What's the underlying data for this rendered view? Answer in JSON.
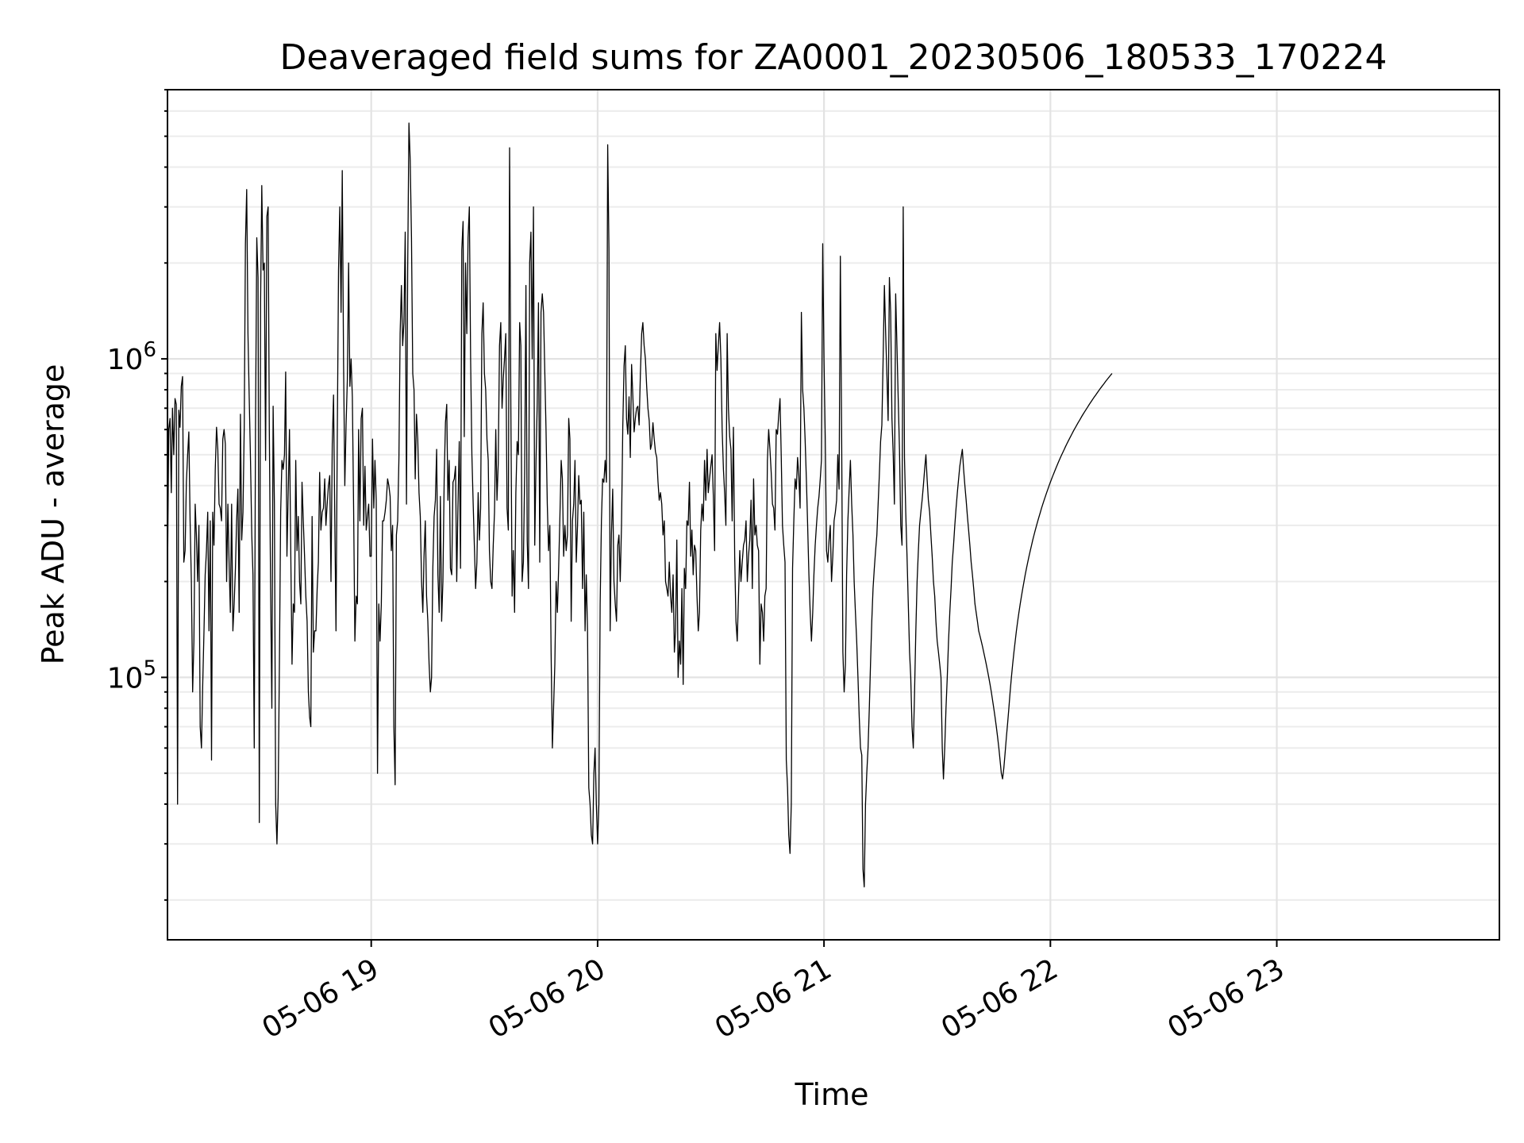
{
  "chart_data": {
    "type": "line",
    "title": "Deaveraged field sums for ZA0001_20230506_180533_170224",
    "xlabel": "Time",
    "ylabel": "Peak ADU - average",
    "xscale": "time",
    "yscale": "log",
    "xlim": [
      "2023-05-06 18:06",
      "2023-05-06 23:59"
    ],
    "ylim": [
      15000,
      7000000
    ],
    "x_ticks": [
      {
        "value": "2023-05-06 19:00",
        "label": "05-06 19"
      },
      {
        "value": "2023-05-06 20:00",
        "label": "05-06 20"
      },
      {
        "value": "2023-05-06 21:00",
        "label": "05-06 21"
      },
      {
        "value": "2023-05-06 22:00",
        "label": "05-06 22"
      },
      {
        "value": "2023-05-06 23:00",
        "label": "05-06 23"
      }
    ],
    "y_ticks": [
      {
        "value": 100000,
        "base": "10",
        "exp": "5"
      },
      {
        "value": 1000000,
        "base": "10",
        "exp": "6"
      }
    ],
    "grid": true,
    "line_color": "#000000",
    "series": [
      {
        "sample_interval_seconds": 20,
        "start": "2023-05-06 18:06",
        "y": [
          200000,
          600000,
          650000,
          380000,
          700000,
          500000,
          750000,
          720000,
          40000,
          690000,
          610000,
          820000,
          880000,
          230000,
          250000,
          410000,
          500000,
          590000,
          310000,
          200000,
          90000,
          130000,
          350000,
          280000,
          200000,
          300000,
          70000,
          60000,
          95000,
          140000,
          210000,
          250000,
          330000,
          140000,
          310000,
          55000,
          330000,
          260000,
          450000,
          610000,
          520000,
          350000,
          340000,
          310000,
          560000,
          600000,
          540000,
          200000,
          350000,
          230000,
          160000,
          350000,
          140000,
          170000,
          220000,
          310000,
          390000,
          160000,
          670000,
          270000,
          330000,
          610000,
          2300000,
          3400000,
          1200000,
          750000,
          480000,
          280000,
          210000,
          60000,
          620000,
          2400000,
          1800000,
          35000,
          1500000,
          3500000,
          1900000,
          2000000,
          480000,
          2800000,
          3000000,
          600000,
          190000,
          80000,
          710000,
          350000,
          40000,
          30000,
          42000,
          110000,
          330000,
          480000,
          450000,
          500000,
          910000,
          240000,
          380000,
          600000,
          250000,
          110000,
          170000,
          160000,
          480000,
          250000,
          320000,
          200000,
          170000,
          410000,
          310000,
          240000,
          180000,
          150000,
          90000,
          75000,
          70000,
          320000,
          120000,
          140000,
          140000,
          190000,
          230000,
          440000,
          290000,
          330000,
          340000,
          420000,
          300000,
          350000,
          400000,
          430000,
          200000,
          540000,
          770000,
          330000,
          140000,
          560000,
          1900000,
          3000000,
          1400000,
          3900000,
          1000000,
          400000,
          620000,
          860000,
          2000000,
          820000,
          1000000,
          760000,
          340000,
          130000,
          180000,
          170000,
          600000,
          310000,
          650000,
          700000,
          300000,
          460000,
          290000,
          320000,
          350000,
          240000,
          240000,
          560000,
          340000,
          480000,
          360000,
          50000,
          170000,
          130000,
          170000,
          310000,
          310000,
          330000,
          360000,
          420000,
          400000,
          370000,
          250000,
          300000,
          70000,
          46000,
          280000,
          310000,
          490000,
          1200000,
          1700000,
          1100000,
          1300000,
          2500000,
          350000,
          1900000,
          5500000,
          4200000,
          2400000,
          900000,
          800000,
          420000,
          670000,
          560000,
          380000,
          320000,
          200000,
          160000,
          240000,
          310000,
          180000,
          150000,
          110000,
          90000,
          100000,
          220000,
          320000,
          360000,
          520000,
          210000,
          160000,
          370000,
          150000,
          200000,
          420000,
          630000,
          720000,
          360000,
          480000,
          220000,
          210000,
          410000,
          420000,
          460000,
          200000,
          350000,
          550000,
          220000,
          2200000,
          2700000,
          570000,
          2000000,
          1200000,
          2400000,
          3000000,
          1000000,
          500000,
          360000,
          260000,
          190000,
          230000,
          380000,
          270000,
          340000,
          1200000,
          1500000,
          900000,
          800000,
          560000,
          480000,
          250000,
          200000,
          190000,
          260000,
          330000,
          600000,
          360000,
          470000,
          1100000,
          1300000,
          700000,
          870000,
          1000000,
          1200000,
          340000,
          290000,
          4600000,
          700000,
          180000,
          250000,
          160000,
          380000,
          550000,
          500000,
          1300000,
          1100000,
          200000,
          230000,
          440000,
          1700000,
          270000,
          190000,
          2000000,
          2500000,
          1000000,
          3000000,
          260000,
          480000,
          720000,
          1500000,
          230000,
          1400000,
          1600000,
          1400000,
          900000,
          600000,
          350000,
          250000,
          300000,
          120000,
          60000,
          80000,
          110000,
          200000,
          160000,
          220000,
          320000,
          480000,
          420000,
          240000,
          300000,
          250000,
          280000,
          650000,
          560000,
          150000,
          310000,
          350000,
          480000,
          230000,
          300000,
          430000,
          350000,
          360000,
          190000,
          330000,
          140000,
          210000,
          140000,
          45000,
          40000,
          32000,
          30000,
          50000,
          60000,
          40000,
          30000,
          40000,
          170000,
          310000,
          420000,
          410000,
          480000,
          410000,
          4700000,
          2200000,
          140000,
          280000,
          390000,
          200000,
          170000,
          150000,
          260000,
          280000,
          200000,
          300000,
          610000,
          950000,
          1100000,
          650000,
          580000,
          760000,
          490000,
          960000,
          760000,
          590000,
          650000,
          700000,
          710000,
          620000,
          900000,
          1200000,
          1300000,
          1100000,
          1000000,
          820000,
          700000,
          640000,
          520000,
          540000,
          630000,
          560000,
          510000,
          490000,
          410000,
          360000,
          380000,
          350000,
          280000,
          310000,
          200000,
          190000,
          180000,
          230000,
          180000,
          160000,
          210000,
          120000,
          140000,
          270000,
          100000,
          130000,
          110000,
          190000,
          95000,
          220000,
          190000,
          310000,
          300000,
          410000,
          240000,
          290000,
          210000,
          260000,
          250000,
          180000,
          140000,
          160000,
          290000,
          350000,
          310000,
          480000,
          360000,
          520000,
          380000,
          420000,
          460000,
          500000,
          370000,
          250000,
          1200000,
          920000,
          1100000,
          1300000,
          1000000,
          600000,
          450000,
          380000,
          300000,
          1200000,
          700000,
          570000,
          520000,
          310000,
          610000,
          240000,
          150000,
          130000,
          180000,
          250000,
          200000,
          230000,
          260000,
          270000,
          310000,
          200000,
          240000,
          270000,
          360000,
          190000,
          420000,
          280000,
          300000,
          260000,
          250000,
          110000,
          170000,
          160000,
          130000,
          180000,
          190000,
          480000,
          600000,
          520000,
          440000,
          350000,
          340000,
          290000,
          600000,
          580000,
          670000,
          750000,
          500000,
          300000,
          260000,
          230000,
          55000,
          45000,
          32000,
          28000,
          40000,
          220000,
          310000,
          420000,
          390000,
          490000,
          430000,
          340000,
          1400000,
          800000,
          700000,
          560000,
          420000,
          300000,
          210000,
          160000,
          130000,
          160000,
          210000,
          260000,
          300000,
          340000,
          370000,
          420000,
          480000,
          2300000,
          1000000,
          560000,
          250000,
          230000,
          270000,
          300000,
          200000,
          240000,
          310000,
          330000,
          360000,
          500000,
          390000,
          2100000,
          600000,
          120000,
          90000,
          110000,
          210000,
          310000,
          390000,
          480000,
          350000,
          280000,
          200000,
          160000,
          130000,
          100000,
          75000,
          60000,
          57000,
          25000,
          22000,
          40000,
          50000,
          60000,
          80000,
          110000,
          150000,
          190000,
          220000,
          250000,
          280000,
          350000,
          430000,
          550000,
          620000,
          1000000,
          1700000,
          1200000,
          900000,
          640000,
          1800000,
          1400000,
          650000,
          500000,
          350000,
          1600000,
          1100000,
          750000,
          520000,
          300000,
          260000,
          3000000,
          490000,
          330000,
          240000,
          170000,
          120000,
          100000,
          70000,
          60000,
          90000,
          140000,
          200000,
          250000,
          300000,
          330000,
          360000,
          400000,
          450000,
          500000,
          420000,
          360000,
          330000,
          280000,
          240000,
          200000,
          180000,
          150000,
          130000,
          120000,
          110000,
          100000,
          60000,
          48000,
          60000,
          80000,
          100000,
          130000,
          160000,
          190000,
          230000,
          260000,
          300000,
          340000,
          380000,
          420000,
          460000,
          490000,
          520000,
          450000,
          400000,
          360000,
          320000,
          290000,
          260000,
          230000,
          210000,
          190000,
          170000,
          160000,
          150000,
          140000,
          135000,
          130000,
          125000,
          120000,
          115000,
          110000,
          105000,
          100000,
          95000,
          90000,
          85000,
          80000,
          75000,
          70000,
          65000,
          60000,
          55000,
          50000,
          48000,
          52000,
          58000,
          65000,
          72000,
          80000,
          90000,
          100000,
          110000,
          120000,
          130000,
          140000,
          150000,
          160000,
          170000,
          180000,
          190000,
          200000,
          210000,
          220000,
          230000,
          240000,
          250000,
          260000,
          270000,
          280000,
          290000,
          300000,
          310000,
          320000,
          330000,
          340000,
          350000,
          360000,
          370000,
          380000,
          390000,
          400000,
          410000,
          420000,
          430000,
          440000,
          450000,
          460000,
          470000,
          480000,
          490000,
          500000,
          510000,
          520000,
          530000,
          540000,
          550000,
          560000,
          570000,
          580000,
          590000,
          600000,
          610000,
          620000,
          630000,
          640000,
          650000,
          660000,
          670000,
          680000,
          690000,
          700000,
          710000,
          720000,
          730000,
          740000,
          750000,
          760000,
          770000,
          780000,
          790000,
          800000,
          810000,
          820000,
          830000,
          840000,
          850000,
          860000,
          870000,
          880000,
          890000,
          900000
        ]
      }
    ]
  }
}
